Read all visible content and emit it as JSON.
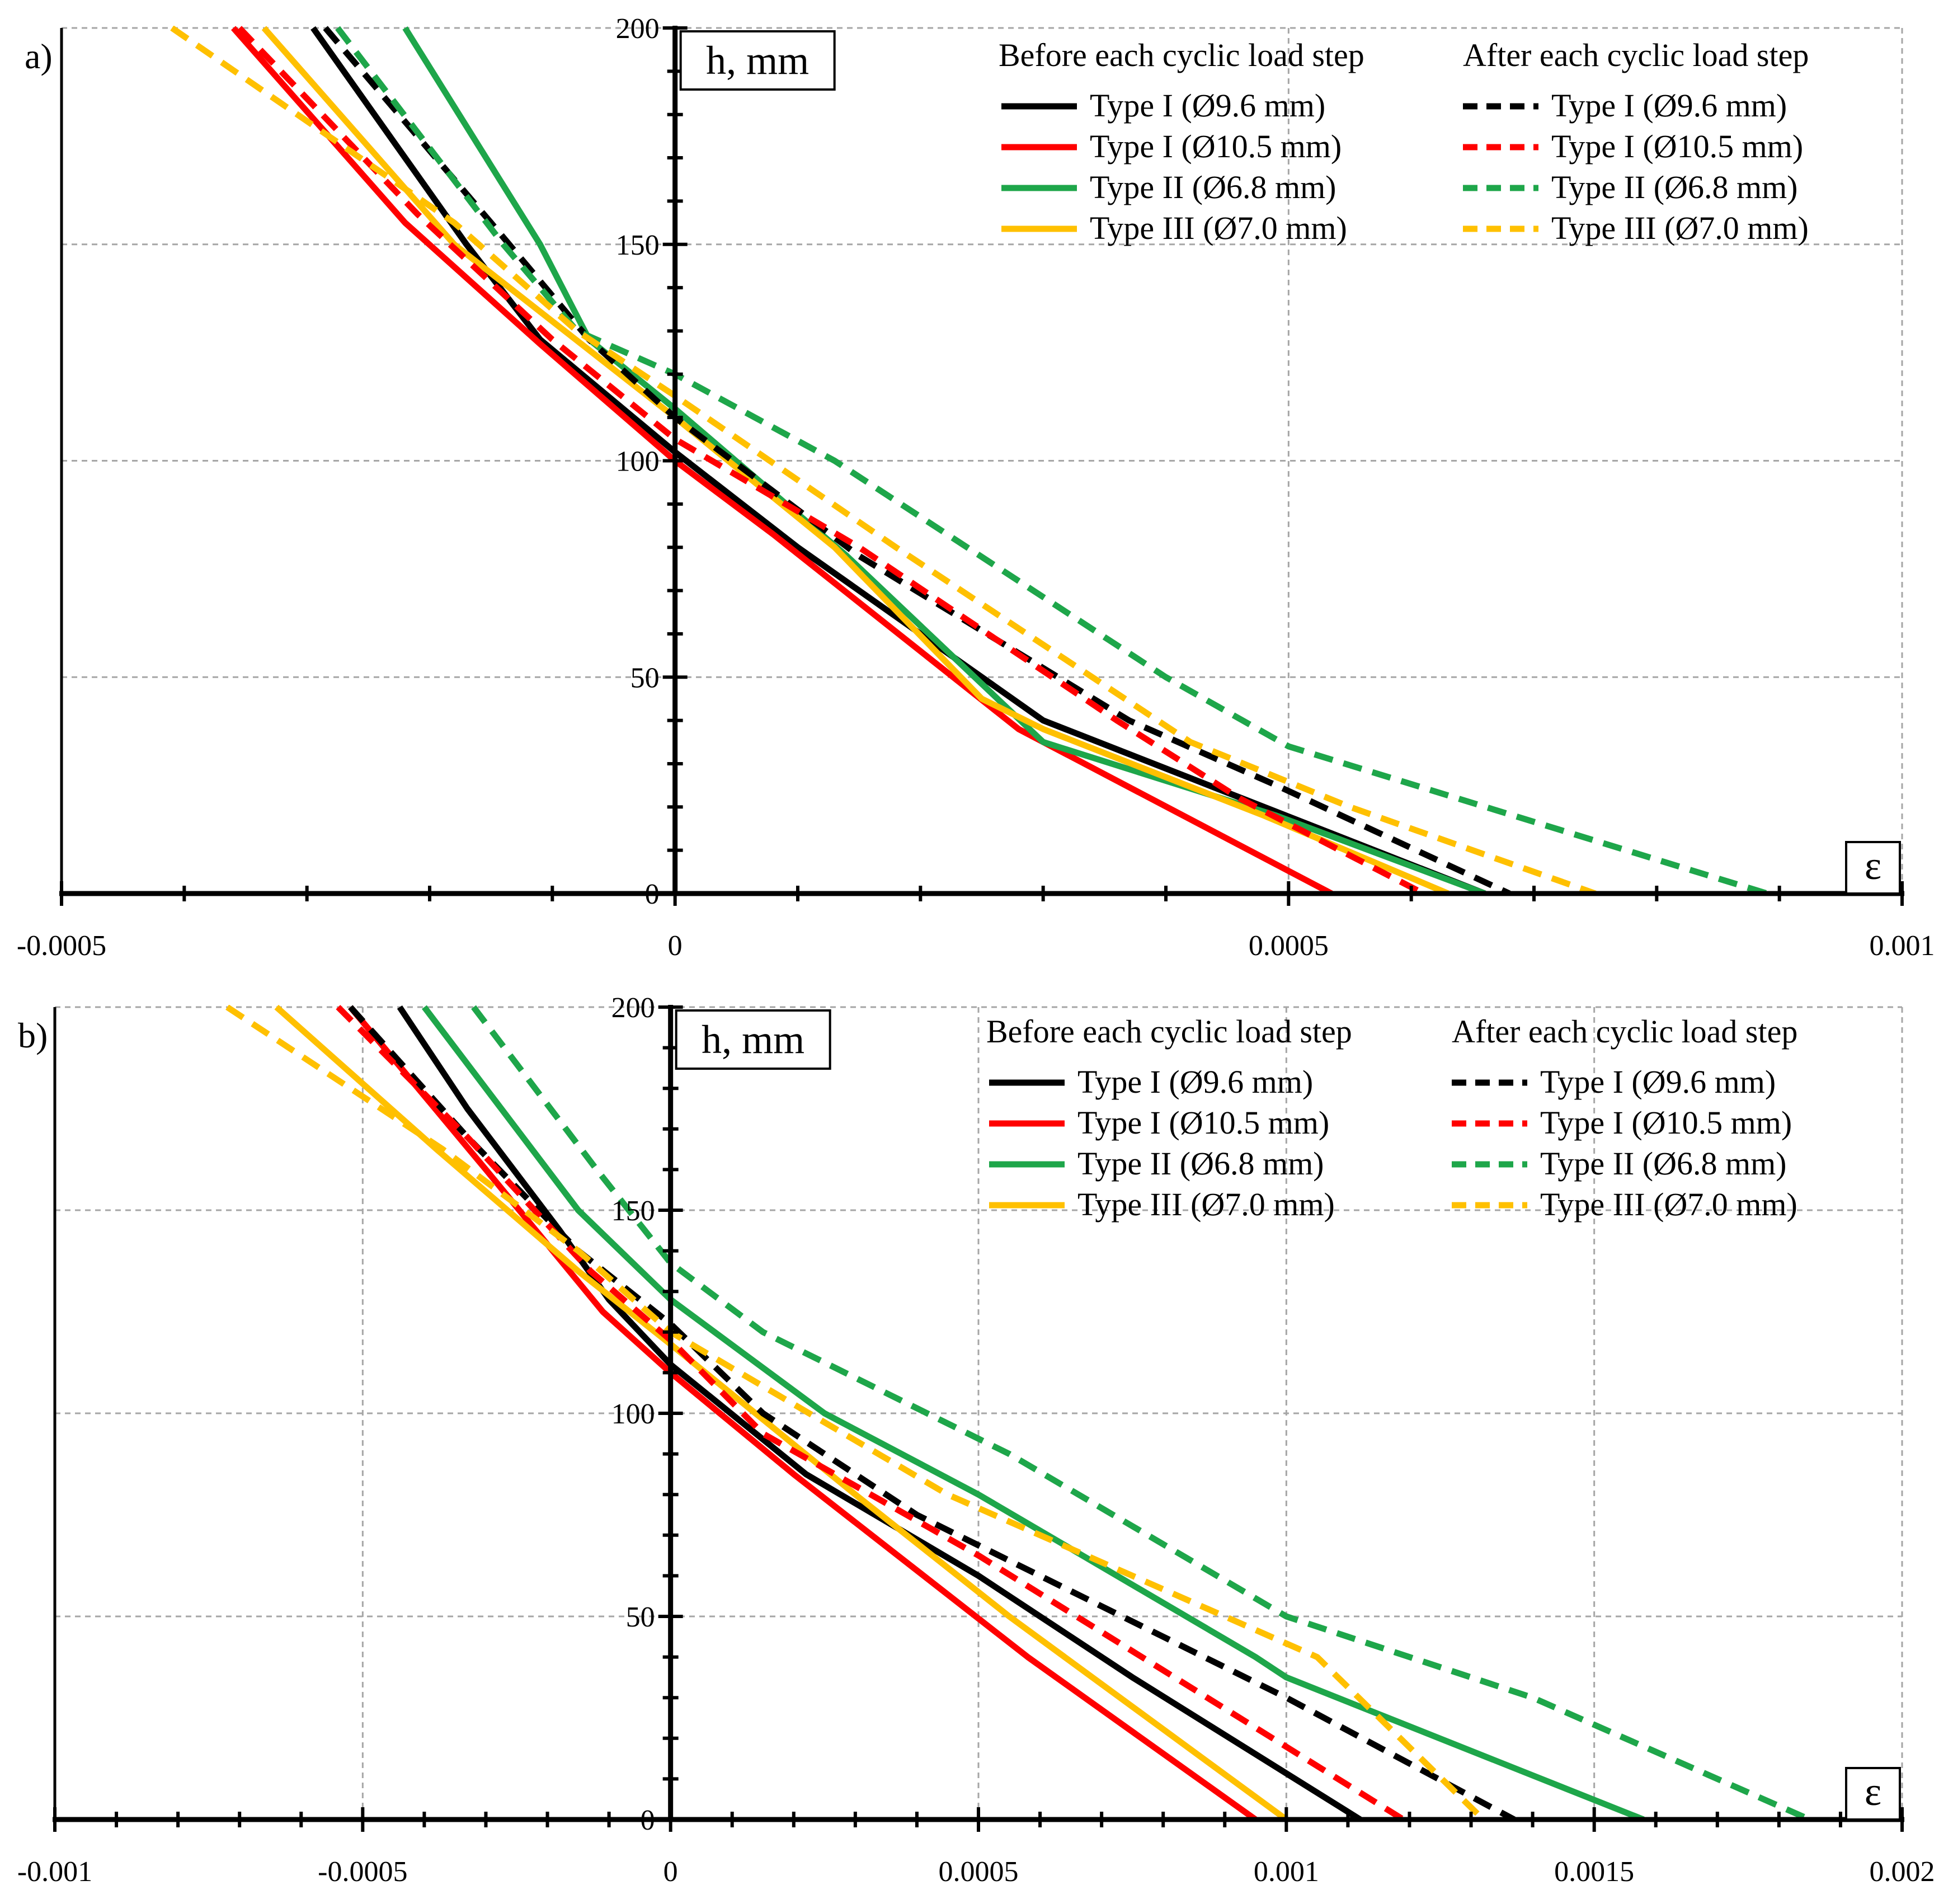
{
  "chart_data": [
    {
      "type": "line",
      "panel_label": "a)",
      "ylabel": "h, mm",
      "xlabel": "ε",
      "xlim": [
        -0.0005,
        0.001
      ],
      "ylim": [
        0,
        200
      ],
      "xticks": [
        "-0.0005",
        "0",
        "0.0005",
        "0.001"
      ],
      "yticks": [
        "0",
        "50",
        "100",
        "150",
        "200"
      ],
      "grid": true,
      "legend_groups": [
        "Before each cyclic load step",
        "After each cyclic load step"
      ],
      "series": [
        {
          "name": "Type I (Ø9.6 mm)",
          "group": "before",
          "color": "#000000",
          "dash": "solid",
          "points": [
            [
              -0.000295,
              200
            ],
            [
              -0.00017,
              150
            ],
            [
              -0.00011,
              128
            ],
            [
              0.0,
              102
            ],
            [
              0.0001,
              80
            ],
            [
              0.0003,
              40
            ],
            [
              0.00066,
              0
            ]
          ]
        },
        {
          "name": "Type I (Ø10.5 mm)",
          "group": "before",
          "color": "#ff0000",
          "dash": "solid",
          "points": [
            [
              -0.00036,
              200
            ],
            [
              -0.00022,
              155
            ],
            [
              -0.00011,
              127
            ],
            [
              0.0,
              100
            ],
            [
              8e-05,
              83
            ],
            [
              0.00028,
              38
            ],
            [
              0.000535,
              0
            ]
          ]
        },
        {
          "name": "Type II (Ø6.8 mm)",
          "group": "before",
          "color": "#1ea64a",
          "dash": "solid",
          "points": [
            [
              -0.00022,
              200
            ],
            [
              -0.00011,
              150
            ],
            [
              -7e-05,
              128
            ],
            [
              0.0,
              112
            ],
            [
              0.00014,
              78
            ],
            [
              0.0003,
              35
            ],
            [
              0.00049,
              18
            ],
            [
              0.00066,
              0
            ]
          ]
        },
        {
          "name": "Type III (Ø7.0 mm)",
          "group": "before",
          "color": "#ffc000",
          "dash": "solid",
          "points": [
            [
              -0.000335,
              200
            ],
            [
              -0.00018,
              150
            ],
            [
              -9e-05,
              130
            ],
            [
              0.0,
              110
            ],
            [
              0.00013,
              80
            ],
            [
              0.00025,
              45
            ],
            [
              0.0003,
              38
            ],
            [
              0.00048,
              18
            ],
            [
              0.00063,
              0
            ]
          ]
        },
        {
          "name": "Type I (Ø9.6 mm)",
          "group": "after",
          "color": "#000000",
          "dash": "dashed",
          "points": [
            [
              -0.000285,
              200
            ],
            [
              -0.00015,
              155
            ],
            [
              -7e-05,
              128
            ],
            [
              0.0,
              110
            ],
            [
              0.00015,
              78
            ],
            [
              0.00037,
              40
            ],
            [
              0.00049,
              25
            ],
            [
              0.00068,
              0
            ]
          ]
        },
        {
          "name": "Type I (Ø10.5 mm)",
          "group": "after",
          "color": "#ff0000",
          "dash": "dashed",
          "points": [
            [
              -0.000355,
              200
            ],
            [
              -0.00021,
              157
            ],
            [
              -0.0001,
              128
            ],
            [
              0.0,
              105
            ],
            [
              0.00015,
              80
            ],
            [
              0.00036,
              40
            ],
            [
              0.00046,
              22
            ],
            [
              0.00061,
              0
            ]
          ]
        },
        {
          "name": "Type II (Ø6.8 mm)",
          "group": "after",
          "color": "#1ea64a",
          "dash": "dashed",
          "points": [
            [
              -0.000275,
              200
            ],
            [
              -0.00014,
              150
            ],
            [
              -8e-05,
              130
            ],
            [
              0.0,
              120
            ],
            [
              0.00013,
              100
            ],
            [
              0.0004,
              50
            ],
            [
              0.0005,
              34
            ],
            [
              0.00089,
              0
            ]
          ]
        },
        {
          "name": "Type III (Ø7.0 mm)",
          "group": "after",
          "color": "#ffc000",
          "dash": "dashed",
          "points": [
            [
              -0.00041,
              200
            ],
            [
              -0.00018,
              155
            ],
            [
              -8e-05,
              130
            ],
            [
              0.0,
              115
            ],
            [
              0.00018,
              80
            ],
            [
              0.00042,
              35
            ],
            [
              0.00055,
              20
            ],
            [
              0.00075,
              0
            ]
          ]
        }
      ]
    },
    {
      "type": "line",
      "panel_label": "b)",
      "ylabel": "h, mm",
      "xlabel": "ε",
      "xlim": [
        -0.001,
        0.002
      ],
      "ylim": [
        0,
        200
      ],
      "xticks": [
        "-0.001",
        "-0.0005",
        "0",
        "0.0005",
        "0.001",
        "0.0015",
        "0.002"
      ],
      "yticks": [
        "0",
        "50",
        "100",
        "150",
        "200"
      ],
      "grid": true,
      "legend_groups": [
        "Before each cyclic load step",
        "After each cyclic load step"
      ],
      "series": [
        {
          "name": "Type I (Ø9.6 mm)",
          "group": "before",
          "color": "#000000",
          "dash": "solid",
          "points": [
            [
              -0.00044,
              200
            ],
            [
              -0.00033,
              175
            ],
            [
              -0.00018,
              145
            ],
            [
              -0.0001,
              128
            ],
            [
              0.0,
              112
            ],
            [
              0.00022,
              85
            ],
            [
              0.0005,
              60
            ],
            [
              0.00075,
              35
            ],
            [
              0.00112,
              0
            ]
          ]
        },
        {
          "name": "Type I (Ø10.5 mm)",
          "group": "before",
          "color": "#ff0000",
          "dash": "solid",
          "points": [
            [
              -0.00052,
              200
            ],
            [
              -0.0003,
              160
            ],
            [
              -0.00011,
              125
            ],
            [
              0.0,
              110
            ],
            [
              0.0002,
              85
            ],
            [
              0.00058,
              40
            ],
            [
              0.00095,
              0
            ]
          ]
        },
        {
          "name": "Type II (Ø6.8 mm)",
          "group": "before",
          "color": "#1ea64a",
          "dash": "solid",
          "points": [
            [
              -0.0004,
              200
            ],
            [
              -0.00015,
              150
            ],
            [
              0.0,
              128
            ],
            [
              0.00025,
              100
            ],
            [
              0.0005,
              80
            ],
            [
              0.00095,
              40
            ],
            [
              0.001,
              35
            ],
            [
              0.00158,
              0
            ]
          ]
        },
        {
          "name": "Type III (Ø7.0 mm)",
          "group": "before",
          "color": "#ffc000",
          "dash": "solid",
          "points": [
            [
              -0.00064,
              200
            ],
            [
              -0.00038,
              165
            ],
            [
              -0.00015,
              135
            ],
            [
              0.0,
              117
            ],
            [
              0.0003,
              80
            ],
            [
              0.00055,
              50
            ],
            [
              0.001,
              0
            ]
          ]
        },
        {
          "name": "Type I (Ø9.6 mm)",
          "group": "after",
          "color": "#000000",
          "dash": "dashed",
          "points": [
            [
              -0.00052,
              200
            ],
            [
              -0.00033,
              168
            ],
            [
              -0.00015,
              140
            ],
            [
              0.0,
              122
            ],
            [
              0.00015,
              100
            ],
            [
              0.0004,
              75
            ],
            [
              0.001,
              30
            ],
            [
              0.00137,
              0
            ]
          ]
        },
        {
          "name": "Type I (Ø10.5 mm)",
          "group": "after",
          "color": "#ff0000",
          "dash": "dashed",
          "points": [
            [
              -0.00054,
              200
            ],
            [
              -0.00033,
              168
            ],
            [
              -0.00013,
              135
            ],
            [
              0.0,
              118
            ],
            [
              0.00015,
              95
            ],
            [
              0.0005,
              65
            ],
            [
              0.00119,
              0
            ]
          ]
        },
        {
          "name": "Type II (Ø6.8 mm)",
          "group": "after",
          "color": "#1ea64a",
          "dash": "dashed",
          "points": [
            [
              -0.00032,
              200
            ],
            [
              -0.00012,
              160
            ],
            [
              0.0,
              137
            ],
            [
              0.00015,
              120
            ],
            [
              0.00055,
              90
            ],
            [
              0.001,
              50
            ],
            [
              0.0014,
              30
            ],
            [
              0.00185,
              0
            ]
          ]
        },
        {
          "name": "Type III (Ø7.0 mm)",
          "group": "after",
          "color": "#ffc000",
          "dash": "dashed",
          "points": [
            [
              -0.00072,
              200
            ],
            [
              -0.00037,
              165
            ],
            [
              -0.00015,
              140
            ],
            [
              0.0,
              120
            ],
            [
              0.00045,
              80
            ],
            [
              0.00105,
              40
            ],
            [
              0.00132,
              0
            ]
          ]
        }
      ]
    }
  ]
}
